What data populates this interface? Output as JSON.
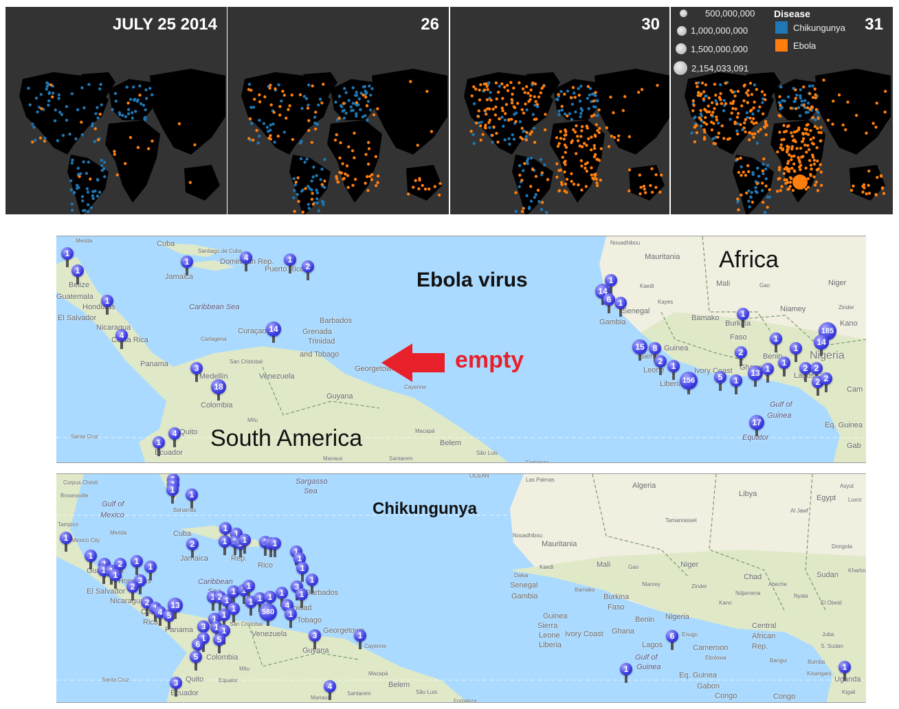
{
  "top_panels": [
    {
      "title": "JULY 25 2014"
    },
    {
      "title": "26"
    },
    {
      "title": "30"
    },
    {
      "title": "31"
    }
  ],
  "legend": {
    "sizes": [
      "500,000,000",
      "1,000,000,000",
      "1,500,000,000",
      "2,154,033,091"
    ],
    "heading": "Disease",
    "items": [
      {
        "label": "Chikungunya",
        "color": "#1f77b4"
      },
      {
        "label": "Ebola",
        "color": "#ff7f0e"
      }
    ]
  },
  "ebola_map": {
    "title": "Ebola virus",
    "region_labels": [
      "Africa",
      "South America"
    ],
    "annotation": "empty",
    "places": [
      "Merida",
      "Cuba",
      "Santiago de Cuba",
      "Jamaica",
      "Dominican Rep.",
      "Puerto Rico",
      "Belize",
      "Guatemala",
      "Honduras",
      "El Salvador",
      "Nicaragua",
      "Costa Rica",
      "Panama",
      "Caribbean Sea",
      "Cartagena",
      "Curaçao",
      "Barbados",
      "Grenada",
      "Trinidad",
      "and Tobago",
      "San Cristobal",
      "Venezuela",
      "Medellín",
      "Colombia",
      "Georgetown",
      "Guyana",
      "Cayenne",
      "Mitu",
      "Quito",
      "Ecuador",
      "Santa Cruz",
      "Macapá",
      "Belem",
      "Manaus",
      "Santarem",
      "São Luis",
      "Fortaleza",
      "Nouadhibou",
      "Mauritania",
      "Mali",
      "Gao",
      "Niger",
      "Kaedi",
      "Kayes",
      "Senegal",
      "Gambia",
      "Bamako",
      "Niamey",
      "Zinder",
      "Kano",
      "Burkina",
      "Faso",
      "Nigeria",
      "Benin",
      "Ghana",
      "Ivory Coast",
      "Liberia",
      "Sierra",
      "Leone",
      "Guinea",
      "Lagos",
      "Gulf of",
      "Guinea",
      "Equator",
      "Eq. Guinea",
      "Cam",
      "Gab"
    ],
    "markers": [
      "1",
      "1",
      "1",
      "4",
      "1",
      "2",
      "1",
      "4",
      "14",
      "3",
      "18",
      "1",
      "4",
      "1",
      "14",
      "6",
      "1",
      "15",
      "8",
      "2",
      "1",
      "156",
      "5",
      "1",
      "13",
      "1",
      "2",
      "1",
      "1",
      "1",
      "1",
      "2",
      "2",
      "2",
      "2",
      "185",
      "14",
      "17"
    ]
  },
  "chik_map": {
    "title": "Chikungunya",
    "places": [
      "Corpus Christi",
      "Brownsville",
      "Gulf of",
      "Mexico",
      "Tampico",
      "Mexico City",
      "Merida",
      "Bahamas",
      "Sargasso",
      "Sea",
      "Cuba",
      "Jamaica",
      "Rep.",
      "Rico",
      "Guatemala",
      "Honduras",
      "El Salvador",
      "Nicaragua",
      "Costa",
      "Rica",
      "Panama",
      "Caribbean",
      "Sea",
      "Barbados",
      "Trinidad",
      "Tobago",
      "San Cristobal",
      "Venezuela",
      "Colombia",
      "Georgetown",
      "Guyana",
      "Cayenne",
      "Mitu",
      "Quito",
      "Ecuador",
      "Equator",
      "Santa Cruz",
      "Manaus",
      "Santarem",
      "Macapá",
      "Belem",
      "São Luis",
      "Fortaleza",
      "Las Palmas",
      "Algeria",
      "Libya",
      "Egypt",
      "Asyut",
      "Luxor",
      "Al Jawf",
      "Tamanrasset",
      "Nouadhibou",
      "Mauritania",
      "Mali",
      "Gao",
      "Niger",
      "Chad",
      "Sudan",
      "Khartoum",
      "Dongola",
      "Kaedi",
      "Dakar",
      "Senegal",
      "Gambia",
      "Bamako",
      "Niamey",
      "Zinder",
      "Abeche",
      "Nyala",
      "El Obeid",
      "Burkina",
      "Faso",
      "Guinea",
      "Sierra",
      "Leone",
      "Liberia",
      "Ivory Coast",
      "Ghana",
      "Benin",
      "Lagos",
      "Enugu",
      "Nigeria",
      "Kano",
      "Ndjamena",
      "Central",
      "African",
      "Rep.",
      "Cameroon",
      "Ebolowa",
      "Bangui",
      "Bumba",
      "Juba",
      "S. Sudan",
      "Kisangani",
      "Gulf of",
      "Guinea",
      "Eq. Guinea",
      "Gabon",
      "Congo",
      "Brazzaville",
      "Congo",
      "Uganda",
      "Kigali",
      "OCEAN"
    ],
    "markers": [
      "1",
      "1",
      "1",
      "1",
      "1",
      "1",
      "1",
      "2",
      "1",
      "1",
      "1",
      "1",
      "1",
      "3",
      "2",
      "2",
      "1",
      "4",
      "5",
      "13",
      "2",
      "1",
      "1",
      "1",
      "1",
      "1",
      "1",
      "1",
      "1",
      "1",
      "1",
      "1",
      "1",
      "1",
      "3",
      "1",
      "1",
      "2",
      "1",
      "1",
      "1",
      "1",
      "1",
      "1",
      "1",
      "1",
      "4",
      "1",
      "580",
      "1",
      "1",
      "1",
      "3",
      "1",
      "1",
      "5",
      "1",
      "6",
      "5",
      "3",
      "4",
      "3",
      "1",
      "6",
      "1",
      "1"
    ]
  }
}
